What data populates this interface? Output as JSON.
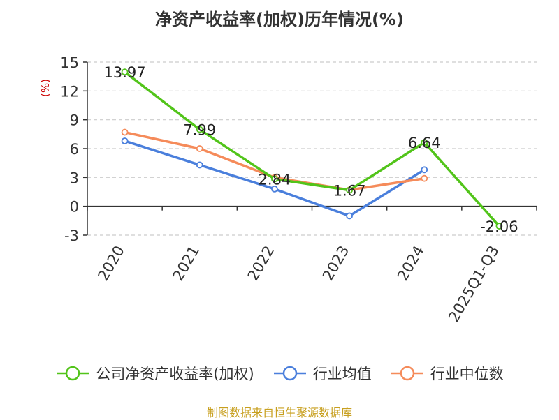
{
  "chart_data": {
    "type": "line",
    "title": "净资产收益率(加权)历年情况(%)",
    "ylabel": "(%)",
    "categories": [
      "2020",
      "2021",
      "2022",
      "2023",
      "2024",
      "2025Q1-Q3"
    ],
    "ylim": [
      -3,
      15
    ],
    "yticks": [
      15,
      12,
      9,
      6,
      3,
      0,
      -3
    ],
    "grid": true,
    "legend_position": "bottom",
    "series": [
      {
        "name": "公司净资产收益率(加权)",
        "color": "#52c41a",
        "values": [
          13.97,
          7.99,
          2.84,
          1.67,
          6.64,
          -2.06
        ],
        "labels": [
          "13.97",
          "7.99",
          "2.84",
          "1.67",
          "6.64",
          "-2.06"
        ]
      },
      {
        "name": "行业均值",
        "color": "#4a7fdc",
        "values": [
          6.8,
          4.3,
          1.8,
          -1.0,
          3.8,
          null
        ]
      },
      {
        "name": "行业中位数",
        "color": "#f58b5a",
        "values": [
          7.7,
          6.0,
          3.0,
          1.7,
          2.9,
          null
        ]
      }
    ]
  },
  "source": "制图数据来自恒生聚源数据库"
}
